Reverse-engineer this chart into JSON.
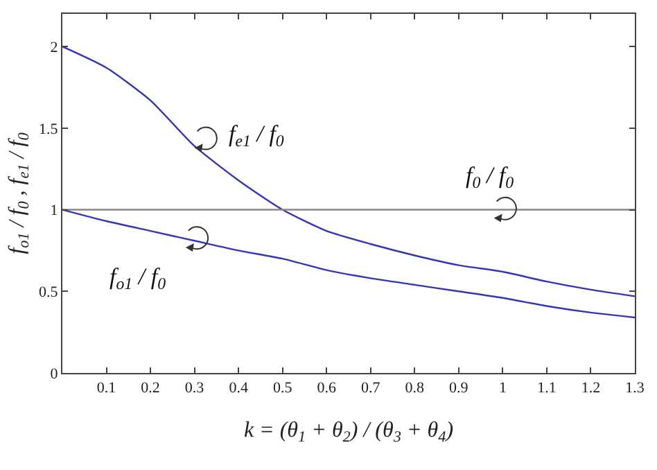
{
  "chart_data": {
    "type": "line",
    "xlabel": "k = (θ$_{1}$ + θ$_{2}$) / (θ$_{3}$ + θ$_{4}$)",
    "ylabel": "f$_{o1}$ / f$_{0}$ , f$_{e1}$ / f$_{0}$",
    "x": [
      0,
      0.1,
      0.2,
      0.3,
      0.4,
      0.5,
      0.6,
      0.7,
      0.8,
      0.9,
      1.0,
      1.1,
      1.2,
      1.3
    ],
    "series": [
      {
        "name": "f$_{e1}$ / f$_{0}$",
        "color": "#3333bb",
        "values": [
          2.0,
          1.87,
          1.67,
          1.39,
          1.18,
          1.0,
          0.87,
          0.79,
          0.72,
          0.66,
          0.62,
          0.56,
          0.51,
          0.47
        ]
      },
      {
        "name": "f$_{0}$ / f$_{0}$",
        "color": "#888888",
        "values": [
          1,
          1,
          1,
          1,
          1,
          1,
          1,
          1,
          1,
          1,
          1,
          1,
          1,
          1
        ]
      },
      {
        "name": "f$_{o1}$ / f$_{0}$",
        "color": "#3333bb",
        "values": [
          1.0,
          0.93,
          0.87,
          0.81,
          0.75,
          0.7,
          0.63,
          0.58,
          0.54,
          0.5,
          0.46,
          0.41,
          0.37,
          0.34
        ]
      }
    ],
    "xlim": [
      0,
      1.3
    ],
    "xticks": [
      {
        "value": 0,
        "label": null
      },
      0.1,
      0.2,
      0.3,
      0.4,
      0.5,
      0.6,
      0.7,
      0.8,
      0.9,
      1,
      1.1,
      1.2,
      1.3
    ],
    "ylim": [
      0,
      2.2
    ],
    "yticks": [
      0,
      0.5,
      1,
      1.5,
      2
    ],
    "grid": false,
    "legend": false,
    "marker": "none",
    "line_style": "solid"
  }
}
